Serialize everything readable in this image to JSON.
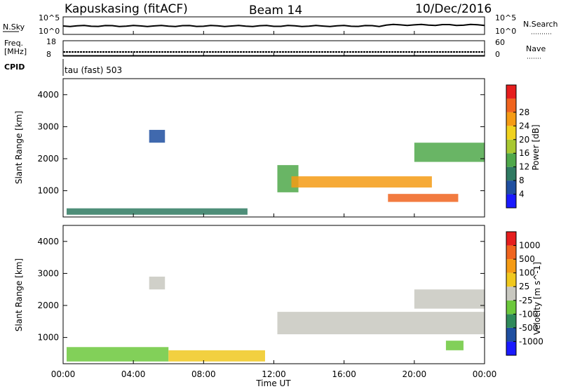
{
  "header": {
    "station": "Kapuskasing (fitACF)",
    "beam": "Beam 14",
    "date": "10/Dec/2016"
  },
  "noise_panel": {
    "left_label": "N.Sky",
    "left_ticks": [
      "10^5",
      "10^0"
    ],
    "right_label": "N.Search",
    "right_ticks": [
      "10^5",
      "10^0"
    ]
  },
  "freq_panel": {
    "left_label_1": "Freq.",
    "left_label_2": "[MHz]",
    "left_ticks": [
      "18",
      "8"
    ],
    "right_label": "Nave",
    "right_ticks": [
      "60",
      "0"
    ]
  },
  "cpid": {
    "label": "CPID",
    "value": "tau (fast) 503"
  },
  "x_axis": {
    "label": "Time UT",
    "ticks": [
      "00:00",
      "04:00",
      "08:00",
      "12:00",
      "16:00",
      "20:00",
      "00:00"
    ]
  },
  "power_panel": {
    "ylabel": "Slant Range [km]",
    "yticks": [
      "1000",
      "2000",
      "3000",
      "4000"
    ],
    "colorbar_label": "Power [dB]",
    "colorbar_ticks": [
      "4",
      "8",
      "12",
      "16",
      "20",
      "24",
      "28"
    ],
    "colors": [
      "#1a1aff",
      "#1f4fa0",
      "#2f7a62",
      "#4fa84a",
      "#a8c832",
      "#f0d21e",
      "#f59b14",
      "#f0641e",
      "#e61e1e"
    ]
  },
  "velocity_panel": {
    "ylabel": "Slant Range [km]",
    "yticks": [
      "1000",
      "2000",
      "3000",
      "4000"
    ],
    "colorbar_label": "Velocity [m s^-1]",
    "colorbar_ticks": [
      "1000",
      "500",
      "100",
      "25",
      "-25",
      "-100",
      "-500",
      "-1000"
    ],
    "colors": [
      "#1a1aff",
      "#1f4fa0",
      "#2f8a5a",
      "#6cc83c",
      "#c8c8c0",
      "#f0c81e",
      "#f59b14",
      "#f0641e",
      "#e61e1e"
    ]
  },
  "chart_data": {
    "type": "heatmap",
    "x_range_hours": [
      0,
      24
    ],
    "y_range_km": [
      180,
      4500
    ],
    "power_regions": [
      {
        "t": [
          0.2,
          10.5
        ],
        "r": [
          250,
          450
        ],
        "level": 2
      },
      {
        "t": [
          4.9,
          5.8
        ],
        "r": [
          2500,
          2900
        ],
        "level": 1
      },
      {
        "t": [
          12.2,
          13.4
        ],
        "r": [
          950,
          1800
        ],
        "level": 3
      },
      {
        "t": [
          13.0,
          21.0
        ],
        "r": [
          1100,
          1450
        ],
        "level": 6
      },
      {
        "t": [
          18.5,
          22.5
        ],
        "r": [
          650,
          900
        ],
        "level": 7
      },
      {
        "t": [
          20.0,
          24.0
        ],
        "r": [
          1900,
          2500
        ],
        "level": 3
      }
    ],
    "velocity_regions": [
      {
        "t": [
          0.2,
          6.0
        ],
        "r": [
          250,
          700
        ],
        "level": 3
      },
      {
        "t": [
          6.0,
          11.5
        ],
        "r": [
          250,
          600
        ],
        "level": 5
      },
      {
        "t": [
          4.9,
          5.8
        ],
        "r": [
          2500,
          2900
        ],
        "level": 4
      },
      {
        "t": [
          12.2,
          24.0
        ],
        "r": [
          1100,
          1800
        ],
        "level": 4
      },
      {
        "t": [
          20.0,
          24.0
        ],
        "r": [
          1900,
          2500
        ],
        "level": 4
      },
      {
        "t": [
          21.8,
          22.8
        ],
        "r": [
          600,
          900
        ],
        "level": 3
      }
    ]
  }
}
